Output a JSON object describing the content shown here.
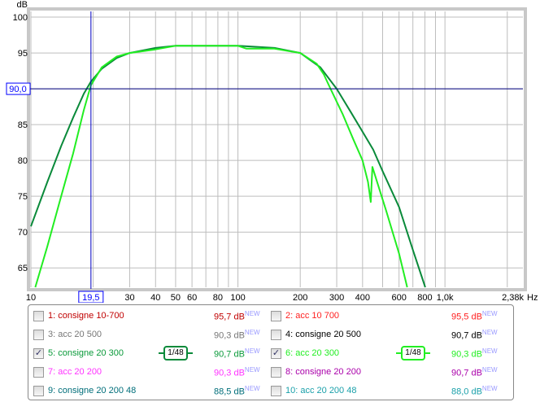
{
  "chart_data": {
    "type": "line",
    "xlabel": "Hz",
    "ylabel": "dB",
    "xscale": "log",
    "xlim": [
      10,
      2380
    ],
    "ylim": [
      62.3,
      100.8
    ],
    "xticks": [
      {
        "v": 10,
        "t": "10"
      },
      {
        "v": 30,
        "t": "30"
      },
      {
        "v": 40,
        "t": "40"
      },
      {
        "v": 50,
        "t": "50"
      },
      {
        "v": 60,
        "t": "60"
      },
      {
        "v": 80,
        "t": "80"
      },
      {
        "v": 100,
        "t": "100"
      },
      {
        "v": 200,
        "t": "200"
      },
      {
        "v": 300,
        "t": "300"
      },
      {
        "v": 400,
        "t": "400"
      },
      {
        "v": 600,
        "t": "600"
      },
      {
        "v": 800,
        "t": "800"
      },
      {
        "v": 1000,
        "t": "1,0k"
      },
      {
        "v": 2380,
        "t": "2,38k"
      }
    ],
    "xgrid": [
      10,
      20,
      30,
      40,
      50,
      60,
      70,
      80,
      90,
      100,
      200,
      300,
      400,
      500,
      600,
      700,
      800,
      900,
      1000,
      2000
    ],
    "yticks": [
      65,
      70,
      75,
      80,
      85,
      90,
      95,
      100
    ],
    "grid": true,
    "cursor": {
      "x": 19.5,
      "x_label": "19,5",
      "y": 90.0,
      "y_label": "90,0"
    },
    "series": [
      {
        "name": "5: consigne 20 300",
        "color": "#0a8a3a",
        "points": [
          [
            10,
            70.8
          ],
          [
            12,
            77
          ],
          [
            14,
            82
          ],
          [
            16,
            86
          ],
          [
            18,
            89.3
          ],
          [
            19.5,
            91
          ],
          [
            22,
            92.8
          ],
          [
            26,
            94.3
          ],
          [
            30,
            95
          ],
          [
            40,
            95.7
          ],
          [
            50,
            96
          ],
          [
            100,
            96
          ],
          [
            150,
            95.7
          ],
          [
            200,
            95
          ],
          [
            250,
            93
          ],
          [
            300,
            90
          ],
          [
            350,
            86.8
          ],
          [
            400,
            84
          ],
          [
            450,
            81.5
          ],
          [
            500,
            78.5
          ],
          [
            600,
            73.5
          ],
          [
            700,
            67.5
          ],
          [
            803,
            62.3
          ]
        ]
      },
      {
        "name": "6: acc 20 300",
        "color": "#22ee22",
        "points": [
          [
            10.5,
            62.3
          ],
          [
            12,
            68
          ],
          [
            14,
            75
          ],
          [
            16,
            81
          ],
          [
            18,
            87
          ],
          [
            19.5,
            90.5
          ],
          [
            22,
            93
          ],
          [
            26,
            94.5
          ],
          [
            30,
            95
          ],
          [
            40,
            95.5
          ],
          [
            50,
            96
          ],
          [
            100,
            96
          ],
          [
            110,
            95.6
          ],
          [
            150,
            95.6
          ],
          [
            200,
            95
          ],
          [
            240,
            93.5
          ],
          [
            260,
            92
          ],
          [
            280,
            90
          ],
          [
            320,
            86.5
          ],
          [
            360,
            83
          ],
          [
            400,
            80
          ],
          [
            425,
            77
          ],
          [
            438,
            74.2
          ],
          [
            446,
            79.1
          ],
          [
            470,
            77
          ],
          [
            520,
            73
          ],
          [
            600,
            67
          ],
          [
            657,
            62.3
          ]
        ]
      }
    ]
  },
  "legend": {
    "new": "NEW",
    "smooth": "1/48",
    "items": [
      {
        "label": "1: consigne 10-700",
        "value": "95,7 dB",
        "color": "#c00000",
        "checked": false
      },
      {
        "label": "2: acc 10 700",
        "value": "95,5 dB",
        "color": "#ff2020",
        "checked": false
      },
      {
        "label": "3: acc 20 500",
        "value": "90,3 dB",
        "color": "#777777",
        "checked": false
      },
      {
        "label": "4: consigne 20 500",
        "value": "90,7 dB",
        "color": "#000000",
        "checked": false
      },
      {
        "label": "5: consigne 20 300",
        "value": "90,7 dB",
        "color": "#0a9a3a",
        "checked": true,
        "smoothColor": "#0a8a3a"
      },
      {
        "label": "6: acc 20 300",
        "value": "90,3 dB",
        "color": "#22ee22",
        "checked": true,
        "smoothColor": "#22ee22"
      },
      {
        "label": "7: acc 20 200",
        "value": "90,3 dB",
        "color": "#ff33ff",
        "checked": false
      },
      {
        "label": "8: consigne 20 200",
        "value": "90,7 dB",
        "color": "#aa00aa",
        "checked": false
      },
      {
        "label": "9: consigne 20 200 48",
        "value": "88,5 dB",
        "color": "#006e7a",
        "checked": false
      },
      {
        "label": "10: acc 20 200 48",
        "value": "88,0 dB",
        "color": "#1aa0aa",
        "checked": false
      }
    ]
  }
}
